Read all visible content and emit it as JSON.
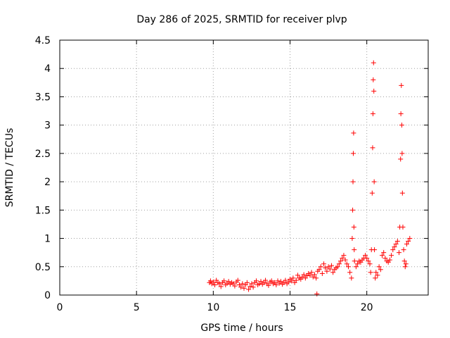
{
  "chart_data": {
    "type": "scatter",
    "title": "Day 286 of 2025, SRMTID for receiver plvp",
    "xlabel": "GPS time / hours",
    "ylabel": "SRMTID / TECUs",
    "xlim": [
      0,
      24
    ],
    "ylim": [
      0,
      4.5
    ],
    "xticks": [
      0,
      5,
      10,
      15,
      20
    ],
    "xtick_labels": [
      "0",
      "5",
      "10",
      "15",
      "20"
    ],
    "yticks": [
      0,
      0.5,
      1,
      1.5,
      2,
      2.5,
      3,
      3.5,
      4,
      4.5
    ],
    "ytick_labels": [
      "0",
      "0.5",
      "1",
      "1.5",
      "2",
      "2.5",
      "3",
      "3.5",
      "4",
      "4.5"
    ],
    "grid": true,
    "marker": "+",
    "color": "#ff0000",
    "series": [
      {
        "name": "SRMTID",
        "x": [
          9.75,
          9.82,
          9.9,
          10.0,
          10.1,
          10.2,
          10.3,
          10.4,
          10.5,
          10.6,
          10.7,
          10.8,
          10.9,
          11.0,
          11.1,
          11.2,
          11.3,
          11.4,
          11.5,
          11.6,
          11.7,
          11.8,
          11.9,
          12.0,
          12.1,
          12.2,
          12.3,
          12.4,
          12.5,
          12.6,
          12.7,
          12.8,
          12.9,
          13.0,
          13.1,
          13.2,
          13.3,
          13.4,
          13.5,
          13.6,
          13.7,
          13.8,
          13.9,
          14.0,
          14.1,
          14.2,
          14.3,
          14.4,
          14.5,
          14.6,
          14.7,
          14.8,
          14.9,
          15.0,
          15.1,
          15.2,
          15.3,
          15.4,
          15.5,
          15.6,
          15.7,
          15.8,
          15.9,
          16.0,
          16.1,
          16.2,
          16.3,
          16.4,
          16.5,
          16.6,
          16.7,
          16.8,
          16.9,
          17.0,
          17.1,
          17.2,
          17.3,
          17.4,
          17.5,
          17.6,
          17.7,
          17.8,
          17.9,
          18.0,
          18.1,
          18.2,
          18.3,
          18.4,
          18.5,
          18.6,
          18.7,
          18.8,
          18.9,
          19.0,
          19.05,
          19.08,
          19.1,
          19.12,
          19.14,
          19.16,
          19.18,
          19.2,
          19.3,
          19.4,
          19.5,
          19.6,
          19.7,
          19.8,
          19.9,
          20.0,
          20.1,
          20.2,
          20.25,
          20.3,
          20.35,
          20.38,
          20.4,
          20.42,
          20.44,
          20.46,
          20.48,
          20.5,
          20.55,
          20.6,
          20.7,
          20.8,
          20.9,
          21.0,
          21.1,
          21.2,
          21.3,
          21.4,
          21.5,
          21.6,
          21.7,
          21.8,
          21.9,
          22.0,
          22.1,
          22.15,
          22.2,
          22.22,
          22.25,
          22.28,
          22.3,
          22.32,
          22.35,
          22.4,
          22.45,
          22.5,
          22.55,
          22.6,
          22.7,
          22.8,
          16.75
        ],
        "y": [
          0.22,
          0.25,
          0.2,
          0.23,
          0.18,
          0.26,
          0.22,
          0.2,
          0.15,
          0.22,
          0.25,
          0.18,
          0.21,
          0.24,
          0.19,
          0.22,
          0.2,
          0.16,
          0.23,
          0.26,
          0.18,
          0.14,
          0.2,
          0.12,
          0.18,
          0.22,
          0.1,
          0.15,
          0.2,
          0.14,
          0.22,
          0.25,
          0.18,
          0.2,
          0.24,
          0.19,
          0.22,
          0.26,
          0.2,
          0.17,
          0.23,
          0.25,
          0.2,
          0.22,
          0.18,
          0.25,
          0.21,
          0.24,
          0.19,
          0.22,
          0.26,
          0.2,
          0.23,
          0.28,
          0.25,
          0.3,
          0.22,
          0.26,
          0.35,
          0.3,
          0.28,
          0.32,
          0.36,
          0.3,
          0.34,
          0.38,
          0.35,
          0.4,
          0.32,
          0.36,
          0.3,
          0.42,
          0.45,
          0.5,
          0.38,
          0.55,
          0.48,
          0.42,
          0.5,
          0.46,
          0.52,
          0.4,
          0.45,
          0.48,
          0.5,
          0.55,
          0.6,
          0.65,
          0.7,
          0.62,
          0.55,
          0.5,
          0.4,
          0.3,
          1.0,
          1.5,
          2.0,
          2.5,
          2.86,
          1.2,
          0.8,
          0.6,
          0.5,
          0.55,
          0.6,
          0.58,
          0.62,
          0.65,
          0.7,
          0.65,
          0.6,
          0.55,
          0.4,
          0.8,
          1.8,
          2.6,
          3.2,
          3.8,
          4.1,
          3.6,
          2.0,
          0.8,
          0.3,
          0.4,
          0.35,
          0.5,
          0.45,
          0.7,
          0.75,
          0.65,
          0.6,
          0.58,
          0.62,
          0.7,
          0.8,
          0.85,
          0.9,
          0.95,
          0.75,
          1.2,
          2.4,
          3.2,
          3.7,
          3.0,
          2.5,
          1.8,
          1.2,
          0.8,
          0.6,
          0.5,
          0.55,
          0.9,
          0.95,
          1.0,
          0.02
        ]
      }
    ]
  }
}
